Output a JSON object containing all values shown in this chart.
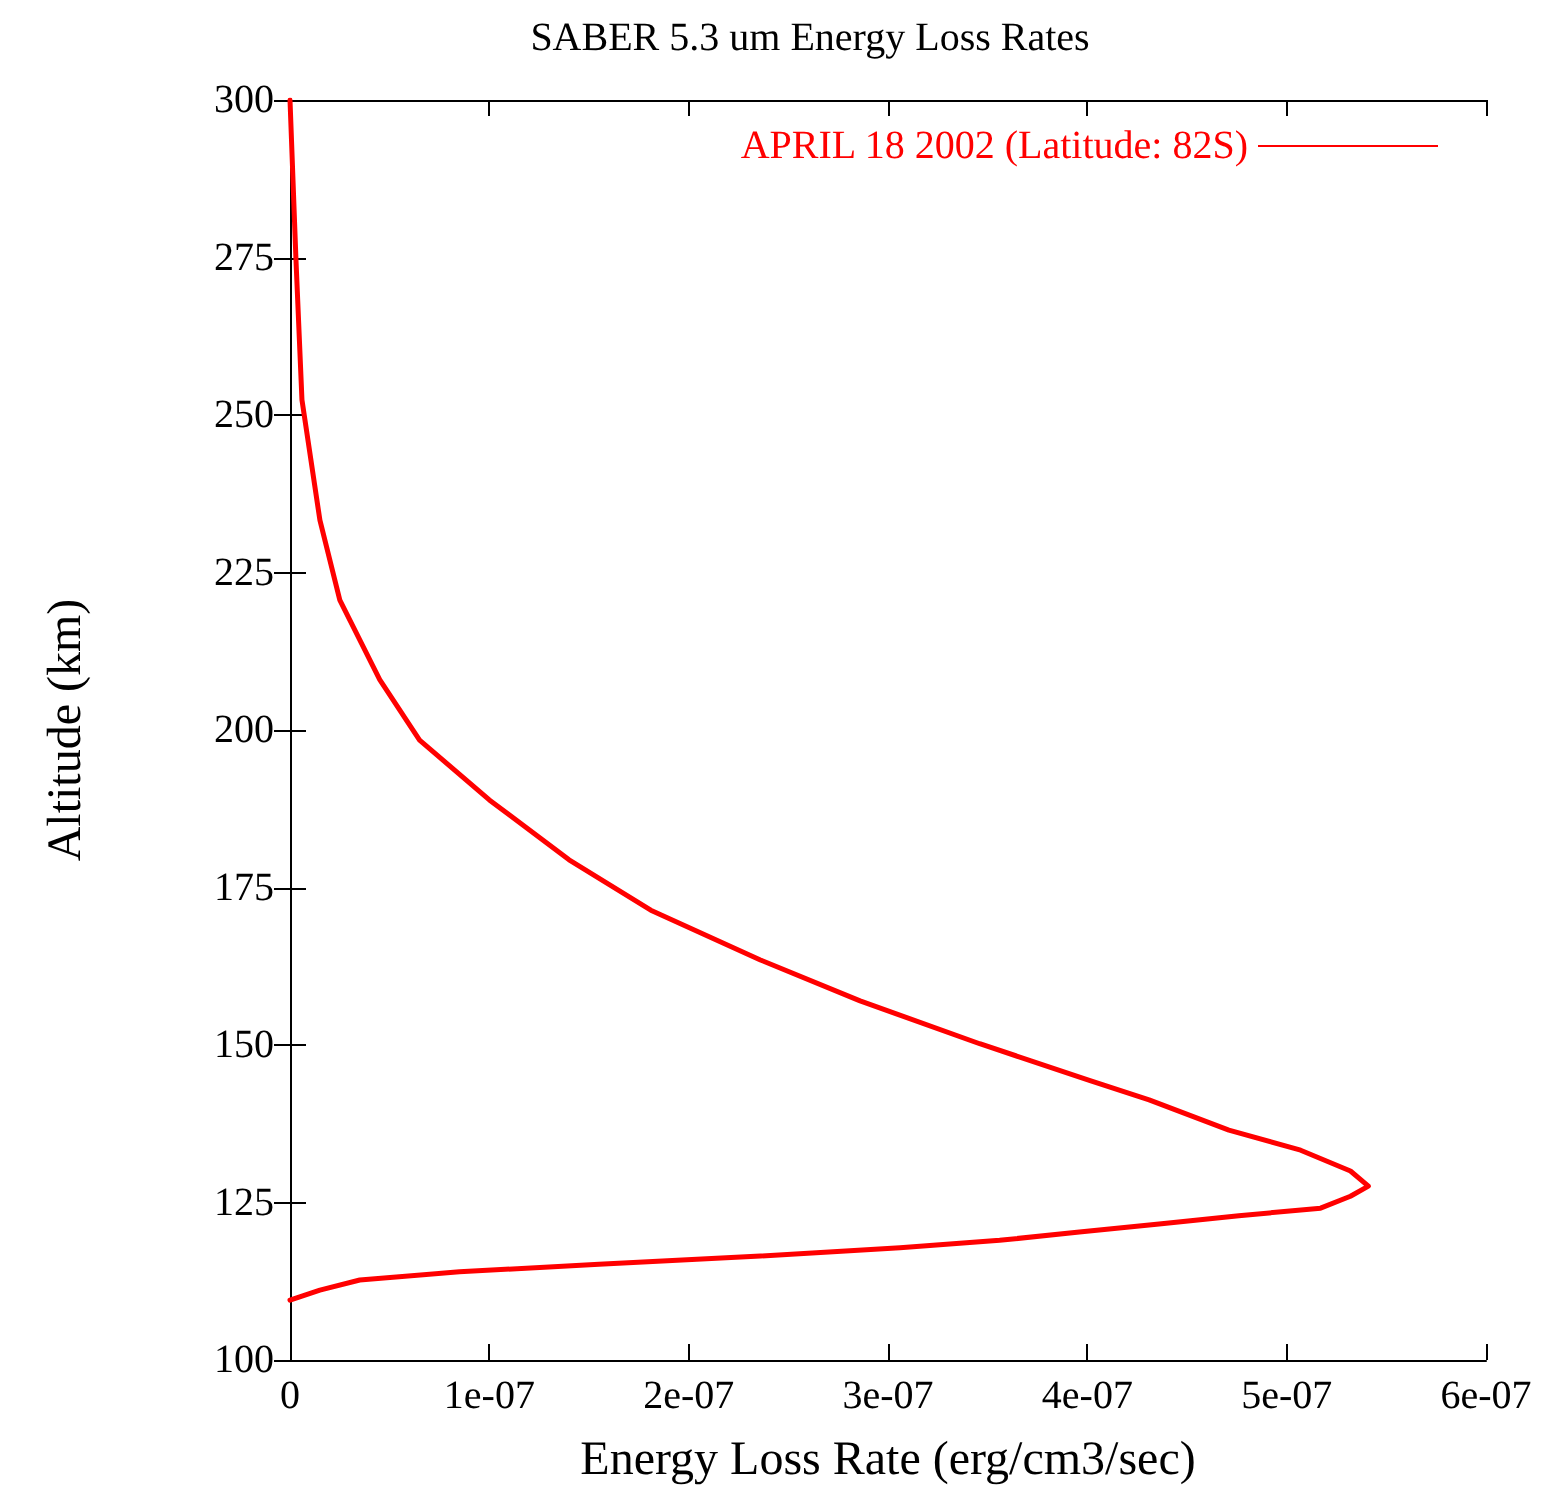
{
  "chart_data": {
    "type": "line",
    "title": "SABER 5.3 um Energy Loss Rates",
    "xlabel": "Energy Loss Rate (erg/cm3/sec)",
    "ylabel": "Altitude (km)",
    "x": [
      0,
      1.5e-08,
      3.5e-08,
      8.5e-08,
      1.55e-07,
      2.36e-07,
      3.06e-07,
      3.56e-07,
      3.96e-07,
      4.36e-07,
      4.76e-07,
      5.17e-07,
      5.32e-07,
      5.41e-07,
      5.32e-07,
      5.07e-07,
      4.71e-07,
      4.31e-07,
      4.01e-07,
      3.46e-07,
      2.86e-07,
      2.36e-07,
      1.81e-07,
      1.4e-07,
      1e-07,
      6.5e-08,
      4.5e-08,
      2.5e-08,
      1.5e-08,
      6e-09,
      3e-09,
      0
    ],
    "series": [
      {
        "name": "APRIL 18 2002 (Latitude: 82S)",
        "color": "#ff0000",
        "values": [
          109.5,
          111.1,
          112.7,
          114,
          115.2,
          116.5,
          117.8,
          119,
          120.3,
          121.6,
          122.9,
          124.1,
          126,
          127.6,
          130,
          133.3,
          136.5,
          141.3,
          144.4,
          150.2,
          157,
          163.5,
          171.4,
          179.4,
          188.9,
          198.4,
          208,
          220.6,
          233.3,
          252.4,
          274.6,
          300
        ]
      }
    ],
    "xlim": [
      0,
      6e-07
    ],
    "xticks": [
      0,
      {
        "value": 1e-07,
        "label": "1e-07"
      },
      {
        "value": 2e-07,
        "label": "2e-07"
      },
      {
        "value": 3e-07,
        "label": "3e-07"
      },
      {
        "value": 4e-07,
        "label": "4e-07"
      },
      {
        "value": 5e-07,
        "label": "5e-07"
      },
      {
        "value": 6e-07,
        "label": "6e-07"
      }
    ],
    "ylim": [
      100,
      300
    ],
    "yticks": [
      100,
      125,
      150,
      175,
      200,
      225,
      250,
      275,
      300
    ],
    "legend": "top right",
    "grid": false,
    "marker": "none",
    "line_style": "solid"
  }
}
